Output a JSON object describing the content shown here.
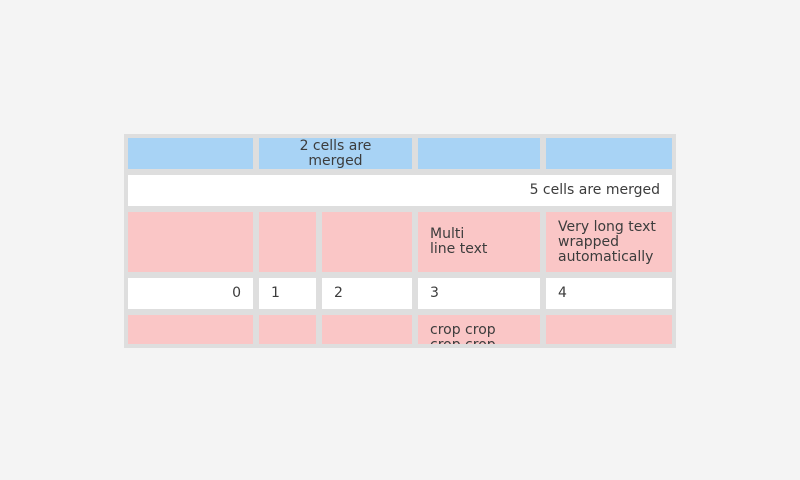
{
  "page": {
    "background_color": "#f4f4f4"
  },
  "table": {
    "description": "table widget with merged cells, clipped at bottom",
    "colors": {
      "grid_background": "#dedede",
      "header_cell_blue": "#a8d3f5",
      "highlight_cell_pink": "#fac6c6",
      "plain_cell_white": "#ffffff",
      "text": "#3c3c3c"
    },
    "rows": [
      {
        "cells": [
          {
            "text": ""
          },
          {
            "text": "2 cells are merged"
          },
          {
            "text": ""
          },
          {
            "text": ""
          }
        ]
      },
      {
        "cells": [
          {
            "text": "5 cells are merged"
          }
        ]
      },
      {
        "cells": [
          {
            "text": ""
          },
          {
            "text": ""
          },
          {
            "text": ""
          },
          {
            "text": "Multi\nline text"
          },
          {
            "text": "Very long text wrapped automatically"
          }
        ]
      },
      {
        "cells": [
          {
            "text": "0"
          },
          {
            "text": "1"
          },
          {
            "text": "2"
          },
          {
            "text": "3"
          },
          {
            "text": "4"
          }
        ]
      },
      {
        "cells": [
          {
            "text": ""
          },
          {
            "text": ""
          },
          {
            "text": ""
          },
          {
            "text": "crop crop crop crop crop"
          },
          {
            "text": ""
          }
        ]
      }
    ]
  }
}
